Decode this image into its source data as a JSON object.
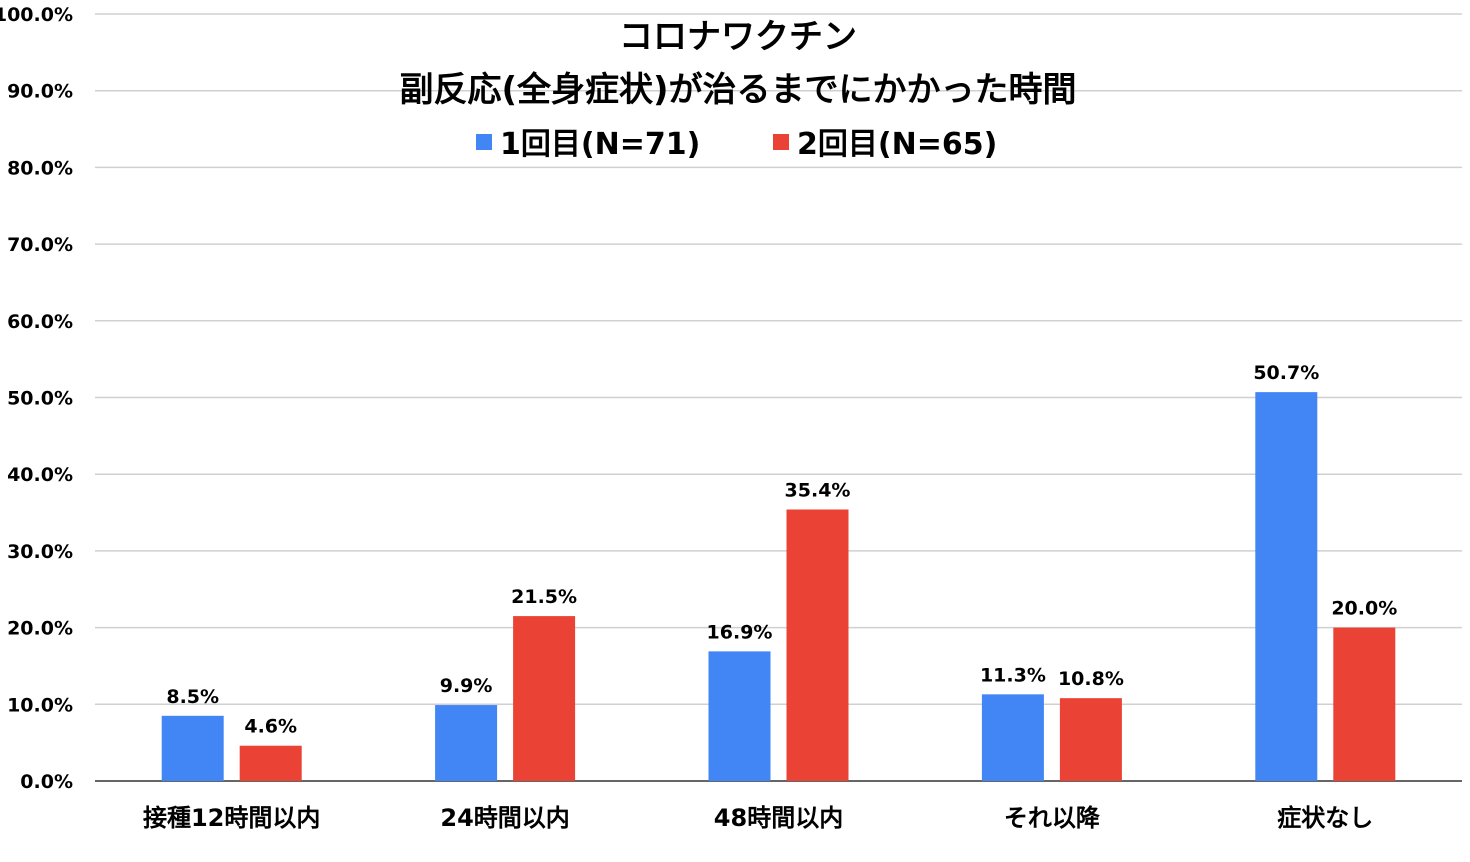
{
  "chart_data": {
    "type": "bar",
    "title_lines": [
      "コロナワクチン",
      "副反応(全身症状)が治るまでにかかった時間"
    ],
    "categories": [
      "接種12時間以内",
      "24時間以内",
      "48時間以内",
      "それ以降",
      "症状なし"
    ],
    "series": [
      {
        "name": "1回目(N=71)",
        "color": "#4285f4",
        "values": [
          8.5,
          9.9,
          16.9,
          11.3,
          50.7
        ],
        "labels": [
          "8.5%",
          "9.9%",
          "16.9%",
          "11.3%",
          "50.7%"
        ]
      },
      {
        "name": "2回目(N=65)",
        "color": "#ea4335",
        "values": [
          4.6,
          21.5,
          35.4,
          10.8,
          20.0
        ],
        "labels": [
          "4.6%",
          "21.5%",
          "35.4%",
          "10.8%",
          "20.0%"
        ]
      }
    ],
    "ylim": [
      0,
      100
    ],
    "yticks": [
      0,
      10,
      20,
      30,
      40,
      50,
      60,
      70,
      80,
      90,
      100
    ],
    "ytick_labels": [
      "0.0%",
      "10.0%",
      "20.0%",
      "30.0%",
      "40.0%",
      "50.0%",
      "60.0%",
      "70.0%",
      "80.0%",
      "90.0%",
      "100.0%"
    ],
    "xlabel": "",
    "ylabel": "",
    "grid": true,
    "legend": "top-center"
  }
}
